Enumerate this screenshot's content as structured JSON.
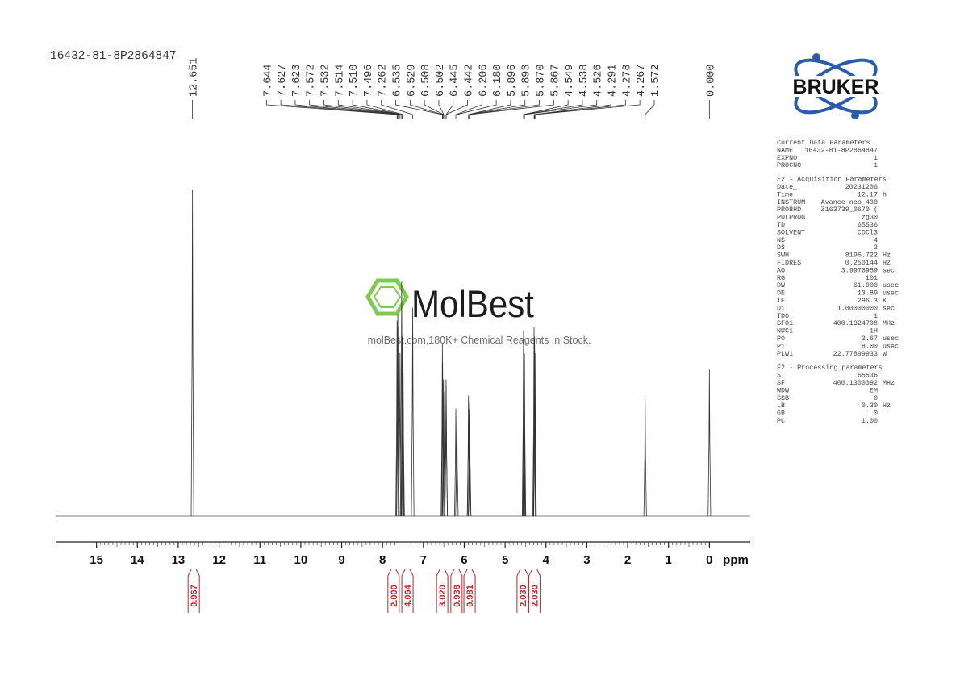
{
  "sample_name": "16432-81-8P2864847",
  "watermark": {
    "brand": "MolBest",
    "tagline": "molBest.com,180K+ Chemical Reagents In Stock."
  },
  "logo": "BRUKER",
  "chart_data": {
    "type": "nmr",
    "xlabel": "ppm",
    "xlim": [
      16,
      -1
    ],
    "xticks": [
      15,
      14,
      13,
      12,
      11,
      10,
      9,
      8,
      7,
      6,
      5,
      4,
      3,
      2,
      1,
      0
    ],
    "ylim": [
      0,
      100
    ],
    "peaks": {
      "values": [
        12.651,
        7.644,
        7.627,
        7.623,
        7.572,
        7.532,
        7.514,
        7.51,
        7.496,
        7.262,
        6.535,
        6.529,
        6.508,
        6.502,
        6.445,
        6.442,
        6.206,
        6.18,
        5.896,
        5.893,
        5.87,
        5.867,
        4.549,
        4.538,
        4.526,
        4.291,
        4.278,
        4.267,
        1.572,
        0
      ],
      "value_labels": [
        "12.651",
        "7.644",
        "7.627",
        "7.623",
        "7.572",
        "7.532",
        "7.514",
        "7.510",
        "7.496",
        "7.262",
        "6.535",
        "6.529",
        "6.508",
        "6.502",
        "6.445",
        "6.442",
        "6.206",
        "6.180",
        "5.896",
        "5.893",
        "5.870",
        "5.867",
        "4.549",
        "4.538",
        "4.526",
        "4.291",
        "4.278",
        "4.267",
        "1.572",
        "0.000"
      ],
      "intensities": [
        100,
        60,
        62,
        58,
        50,
        72,
        55,
        52,
        45,
        64,
        53,
        47,
        42,
        38,
        42,
        40,
        33,
        30,
        37,
        35,
        33,
        32,
        57,
        55,
        50,
        58,
        55,
        50,
        36,
        45
      ]
    },
    "integrals": {
      "x": [
        12.62,
        7.73,
        7.39,
        6.54,
        6.19,
        5.87,
        4.57,
        4.28
      ],
      "values": [
        0.967,
        2,
        4.064,
        3.02,
        0.938,
        0.981,
        2.03,
        2.03
      ],
      "value_labels": [
        "0.967",
        "2.000",
        "4.064",
        "3.020",
        "0.938",
        "0.981",
        "2.030",
        "2.030"
      ]
    }
  },
  "parameters": [
    {
      "title": "Current Data Parameters",
      "rows": [
        {
          "key": "NAME",
          "value": "16432-81-8P2864847"
        },
        {
          "key": "EXPNO",
          "value": "1"
        },
        {
          "key": "PROCNO",
          "value": "1"
        }
      ]
    },
    {
      "title": "F2 - Acquisition Parameters",
      "rows": [
        {
          "key": "Date_",
          "value": "20231206"
        },
        {
          "key": "Time",
          "value": "12.17",
          "unit": "h"
        },
        {
          "key": "INSTRUM",
          "value": "Avance neo 400"
        },
        {
          "key": "PROBHD",
          "value": "Z163739_0670 ("
        },
        {
          "key": "PULPROG",
          "value": "zg30"
        },
        {
          "key": "TD",
          "value": "65536"
        },
        {
          "key": "SOLVENT",
          "value": "CDCl3"
        },
        {
          "key": "NS",
          "value": "4"
        },
        {
          "key": "DS",
          "value": "2"
        },
        {
          "key": "SWH",
          "value": "8196.722",
          "unit": "Hz"
        },
        {
          "key": "FIDRES",
          "value": "0.250144",
          "unit": "Hz"
        },
        {
          "key": "AQ",
          "value": "3.9976959",
          "unit": "sec"
        },
        {
          "key": "RG",
          "value": "101"
        },
        {
          "key": "DW",
          "value": "61.000",
          "unit": "usec"
        },
        {
          "key": "DE",
          "value": "13.89",
          "unit": "usec"
        },
        {
          "key": "TE",
          "value": "296.3",
          "unit": "K"
        },
        {
          "key": "D1",
          "value": "1.00000000",
          "unit": "sec"
        },
        {
          "key": "TD0",
          "value": "1"
        },
        {
          "key": "SFO1",
          "value": "400.1324708",
          "unit": "MHz"
        },
        {
          "key": "NUC1",
          "value": "1H"
        },
        {
          "key": "P0",
          "value": "2.67",
          "unit": "usec"
        },
        {
          "key": "P1",
          "value": "8.00",
          "unit": "usec"
        },
        {
          "key": "PLW1",
          "value": "22.77899933",
          "unit": "W"
        }
      ]
    },
    {
      "title": "F2 - Processing parameters",
      "rows": [
        {
          "key": "SI",
          "value": "65536"
        },
        {
          "key": "SF",
          "value": "400.1300092",
          "unit": "MHz"
        },
        {
          "key": "WDW",
          "value": "EM"
        },
        {
          "key": "SSB",
          "value": "0"
        },
        {
          "key": "LB",
          "value": "0.30",
          "unit": "Hz"
        },
        {
          "key": "GB",
          "value": "0"
        },
        {
          "key": "PC",
          "value": "1.00"
        }
      ]
    }
  ]
}
